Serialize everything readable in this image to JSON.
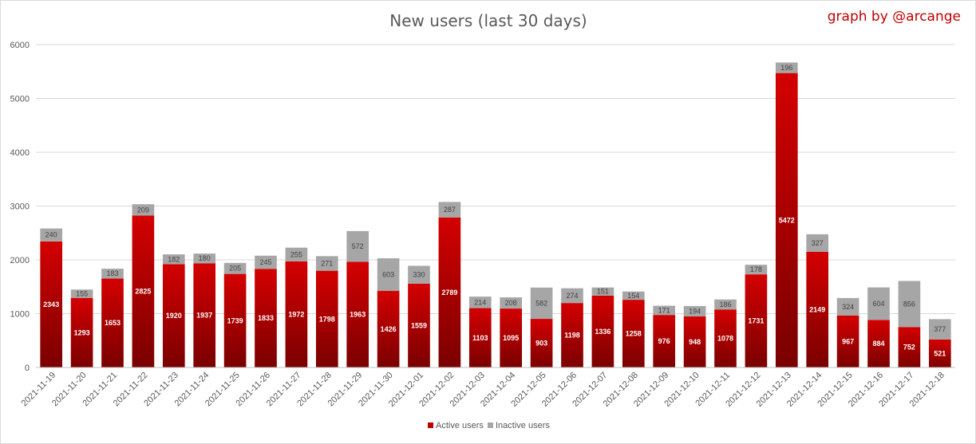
{
  "chart_data": {
    "type": "bar",
    "stacked": true,
    "title": "New users (last 30 days)",
    "credit": "graph by @arcange",
    "categories": [
      "2021-11-19",
      "2021-11-20",
      "2021-11-21",
      "2021-11-22",
      "2021-11-23",
      "2021-11-24",
      "2021-11-25",
      "2021-11-26",
      "2021-11-27",
      "2021-11-28",
      "2021-11-29",
      "2021-11-30",
      "2021-12-01",
      "2021-12-02",
      "2021-12-03",
      "2021-12-04",
      "2021-12-05",
      "2021-12-06",
      "2021-12-07",
      "2021-12-08",
      "2021-12-09",
      "2021-12-10",
      "2021-12-11",
      "2021-12-12",
      "2021-12-13",
      "2021-12-14",
      "2021-12-15",
      "2021-12-16",
      "2021-12-17",
      "2021-12-18"
    ],
    "series": [
      {
        "name": "Active users",
        "color": "#c00000",
        "values": [
          2343,
          1293,
          1653,
          2825,
          1920,
          1937,
          1739,
          1833,
          1972,
          1798,
          1963,
          1426,
          1559,
          2789,
          1103,
          1095,
          903,
          1198,
          1336,
          1258,
          976,
          948,
          1078,
          1731,
          5472,
          2149,
          967,
          884,
          752,
          521
        ]
      },
      {
        "name": "Inactive users",
        "color": "#a6a6a6",
        "values": [
          240,
          155,
          183,
          209,
          182,
          180,
          205,
          245,
          255,
          271,
          572,
          603,
          330,
          287,
          214,
          208,
          582,
          274,
          151,
          154,
          171,
          194,
          186,
          178,
          196,
          327,
          324,
          604,
          856,
          377
        ]
      }
    ],
    "yticks": [
      "0",
      "1000",
      "2000",
      "3000",
      "4000",
      "5000",
      "6000"
    ],
    "ylim": [
      0,
      6000
    ],
    "grid": true,
    "legend": "bottom-center"
  }
}
